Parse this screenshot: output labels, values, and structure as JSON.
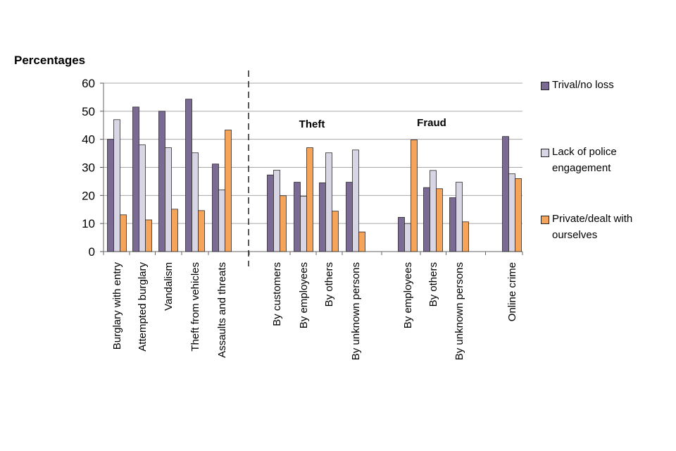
{
  "chart_data": {
    "type": "bar",
    "ylabel": "Percentages",
    "ylim": [
      0,
      60
    ],
    "yticks": [
      0,
      10,
      20,
      30,
      40,
      50,
      60
    ],
    "grid": true,
    "legend_position": "right",
    "group_labels": [
      "Theft",
      "Fraud"
    ],
    "categories": [
      "Burglary with entry",
      "Attempted burglary",
      "Vandalism",
      "Theft from vehicles",
      "Assaults and threats",
      "By customers",
      "By employees",
      "By others",
      "By unknown persons",
      "By employees",
      "By others",
      "By unknown persons",
      "Online crime"
    ],
    "series": [
      {
        "name": "Trival/no loss",
        "color": "#7a6a94",
        "values": [
          40,
          51.5,
          50,
          54.3,
          31.2,
          27.3,
          24.7,
          24.5,
          24.7,
          12.2,
          22.8,
          19.2,
          41
        ]
      },
      {
        "name": "Lack of police engagement",
        "color": "#d8d6e4",
        "values": [
          47,
          38,
          37,
          35.2,
          22,
          29,
          19.7,
          35.2,
          36.2,
          10,
          28.9,
          24.7,
          27.7
        ]
      },
      {
        "name": "Private/dealt with ourselves",
        "color": "#f5a45a",
        "values": [
          13.1,
          11.3,
          15.1,
          14.6,
          43.3,
          19.9,
          37,
          14.4,
          7,
          39.8,
          22.4,
          10.6,
          26
        ]
      }
    ]
  },
  "legend_lines": [
    [
      "Trival/no loss"
    ],
    [
      "Lack of police",
      "engagement"
    ],
    [
      "Private/dealt with",
      "ourselves"
    ]
  ]
}
